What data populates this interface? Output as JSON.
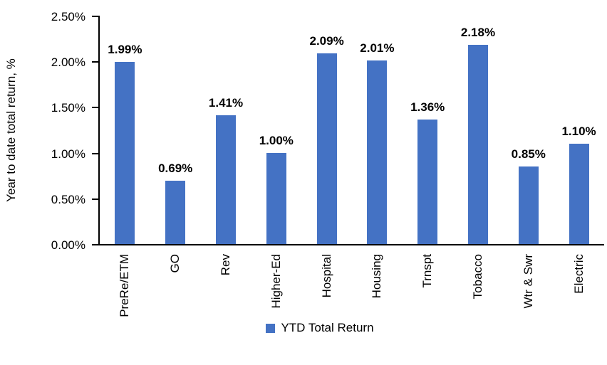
{
  "chart_data": {
    "type": "bar",
    "title": "",
    "xlabel": "",
    "ylabel": "Year to date total return, %",
    "categories": [
      "PreRe/ETM",
      "GO",
      "Rev",
      "Higher-Ed",
      "Hospital",
      "Housing",
      "Trnspt",
      "Tobacco",
      "Wtr & Swr",
      "Electric"
    ],
    "values": [
      1.99,
      0.69,
      1.41,
      1.0,
      2.09,
      2.01,
      1.36,
      2.18,
      0.85,
      1.1
    ],
    "data_labels": [
      "1.99%",
      "0.69%",
      "1.41%",
      "1.00%",
      "2.09%",
      "2.01%",
      "1.36%",
      "2.18%",
      "0.85%",
      "1.10%"
    ],
    "ylim": [
      0,
      2.5
    ],
    "y_ticks": [
      "0.00%",
      "0.50%",
      "1.00%",
      "1.50%",
      "2.00%",
      "2.50%"
    ],
    "grid": false,
    "legend_position": "bottom",
    "legend": [
      {
        "label": "YTD Total Return",
        "color": "#4472C4"
      }
    ],
    "bar_color": "#4472C4",
    "axis_color": "#000000",
    "text_color": "#000000"
  }
}
